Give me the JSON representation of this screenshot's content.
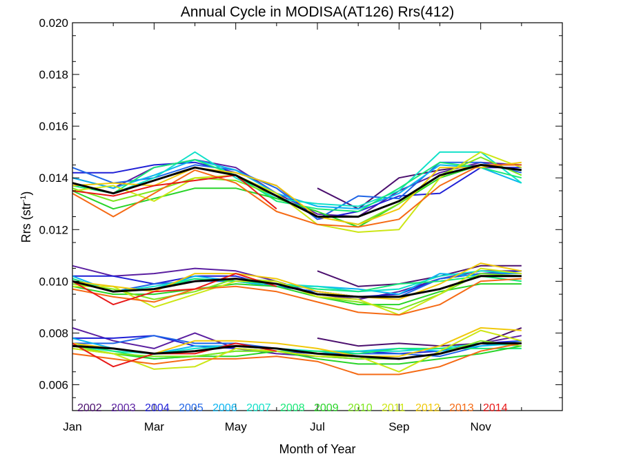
{
  "chart_data": {
    "type": "line",
    "title": "Annual Cycle in MODISA(AT126) Rrs(412)",
    "xlabel": "Month of Year",
    "ylabel": "Rrs (str",
    "ylabel_sup": "-1",
    "ylabel_close": ")",
    "xlim": [
      0,
      12
    ],
    "ylim": [
      0.005,
      0.02
    ],
    "x_ticks": [
      0,
      2,
      4,
      6,
      8,
      10
    ],
    "x_tick_labels": [
      "Jan",
      "Mar",
      "May",
      "Jul",
      "Sep",
      "Nov"
    ],
    "y_ticks": [
      0.006,
      0.008,
      0.01,
      0.012,
      0.014,
      0.016,
      0.018,
      0.02
    ],
    "y_tick_labels": [
      "0.006",
      "0.008",
      "0.010",
      "0.012",
      "0.014",
      "0.016",
      "0.018",
      "0.020"
    ],
    "x": [
      0,
      1,
      2,
      3,
      4,
      5,
      6,
      7,
      8,
      9,
      10,
      11
    ],
    "legend_position": "bottom-left inside",
    "series": [
      {
        "name": "2002",
        "color": "#4b0f6e",
        "groups": [
          [
            null,
            null,
            null,
            null,
            null,
            null,
            0.0136,
            0.0128,
            0.014,
            0.0143,
            0.0145,
            0.0145
          ],
          [
            null,
            null,
            null,
            null,
            null,
            null,
            0.0104,
            0.0098,
            0.0099,
            0.0102,
            0.0106,
            0.0106
          ],
          [
            null,
            null,
            null,
            null,
            null,
            null,
            0.0078,
            0.0075,
            0.0076,
            0.0075,
            0.0076,
            0.0082
          ]
        ]
      },
      {
        "name": "2003",
        "color": "#5a1ea0",
        "groups": [
          [
            0.014,
            0.0136,
            0.0144,
            0.0147,
            0.0144,
            0.0134,
            0.0126,
            0.0125,
            0.0135,
            0.0142,
            0.0146,
            0.0145
          ],
          [
            0.0106,
            0.0102,
            0.0103,
            0.0105,
            0.0104,
            0.01,
            0.0095,
            0.0093,
            0.0096,
            0.0101,
            0.0104,
            0.0104
          ],
          [
            0.0082,
            0.0077,
            0.0074,
            0.008,
            0.0074,
            0.0072,
            0.0071,
            0.007,
            0.007,
            0.0072,
            0.0076,
            0.0079
          ]
        ]
      },
      {
        "name": "2004",
        "color": "#1f1fd6",
        "groups": [
          [
            0.0142,
            0.0142,
            0.0145,
            0.0146,
            0.0142,
            0.0137,
            0.0124,
            0.0127,
            0.0133,
            0.0134,
            0.0144,
            0.0144
          ],
          [
            0.0102,
            0.0102,
            0.0099,
            0.0102,
            0.0102,
            0.0098,
            0.0096,
            0.0094,
            0.0095,
            0.0101,
            0.0103,
            0.0104
          ],
          [
            0.0078,
            0.0078,
            0.0079,
            0.0075,
            0.0074,
            0.0073,
            0.0072,
            0.0073,
            0.0072,
            0.0073,
            0.0076,
            0.0077
          ]
        ]
      },
      {
        "name": "2005",
        "color": "#1e64e6",
        "groups": [
          [
            0.0144,
            0.0138,
            0.014,
            0.0145,
            0.0143,
            0.0136,
            0.0124,
            0.0133,
            0.0132,
            0.0146,
            0.0146,
            0.0142
          ],
          [
            0.0101,
            0.0096,
            0.0099,
            0.01,
            0.01,
            0.0098,
            0.0096,
            0.0094,
            0.0094,
            0.0101,
            0.0103,
            0.0103
          ],
          [
            0.0076,
            0.0076,
            0.0079,
            0.0076,
            0.0076,
            0.0074,
            0.0072,
            0.0072,
            0.0072,
            0.0071,
            0.0075,
            0.0077
          ]
        ]
      },
      {
        "name": "2006",
        "color": "#0ab4f0",
        "groups": [
          [
            0.014,
            0.0136,
            0.0141,
            0.0147,
            0.0143,
            0.0134,
            0.0129,
            0.0128,
            0.0134,
            0.0145,
            0.0144,
            0.0138
          ],
          [
            0.0102,
            0.0096,
            0.0097,
            0.0102,
            0.01,
            0.0098,
            0.0098,
            0.0097,
            0.0095,
            0.0103,
            0.0102,
            0.0102
          ],
          [
            0.0078,
            0.0074,
            0.0072,
            0.0075,
            0.0075,
            0.0074,
            0.0072,
            0.0073,
            0.0074,
            0.0073,
            0.0075,
            0.0076
          ]
        ]
      },
      {
        "name": "2007",
        "color": "#10e0c8",
        "groups": [
          [
            0.0137,
            0.0134,
            0.014,
            0.015,
            0.014,
            0.0132,
            0.013,
            0.0129,
            0.0135,
            0.015,
            0.015,
            0.0138
          ],
          [
            0.01,
            0.0096,
            0.0098,
            0.0101,
            0.01,
            0.0099,
            0.0098,
            0.0096,
            0.0097,
            0.0102,
            0.0104,
            0.0103
          ],
          [
            0.0075,
            0.0073,
            0.0072,
            0.0074,
            0.0075,
            0.0074,
            0.0073,
            0.0073,
            0.0073,
            0.0074,
            0.0076,
            0.0075
          ]
        ]
      },
      {
        "name": "2008",
        "color": "#18e878",
        "groups": [
          [
            0.0137,
            0.0134,
            0.0144,
            0.0147,
            0.0141,
            0.0131,
            0.0128,
            0.0127,
            0.0136,
            0.0146,
            0.0144,
            0.014
          ],
          [
            0.0101,
            0.0096,
            0.0097,
            0.0101,
            0.01,
            0.0099,
            0.0097,
            0.0096,
            0.0099,
            0.01,
            0.0102,
            0.01
          ],
          [
            0.0076,
            0.0073,
            0.007,
            0.0071,
            0.0073,
            0.0073,
            0.0073,
            0.0072,
            0.0074,
            0.0074,
            0.0074,
            0.0074
          ]
        ]
      },
      {
        "name": "2009",
        "color": "#28d428",
        "groups": [
          [
            0.0135,
            0.0128,
            0.0132,
            0.0136,
            0.0136,
            0.0132,
            0.0127,
            0.0121,
            0.013,
            0.014,
            0.0145,
            0.0143
          ],
          [
            0.0098,
            0.0095,
            0.0095,
            0.0097,
            0.0099,
            0.0098,
            0.0094,
            0.0091,
            0.0091,
            0.0096,
            0.0099,
            0.0099
          ],
          [
            0.0074,
            0.0072,
            0.007,
            0.0071,
            0.0071,
            0.0073,
            0.007,
            0.0068,
            0.0068,
            0.007,
            0.0072,
            0.0075
          ]
        ]
      },
      {
        "name": "2010",
        "color": "#7ee61e",
        "groups": [
          [
            0.0136,
            0.0131,
            0.0135,
            0.014,
            0.0139,
            0.0133,
            0.0125,
            0.0122,
            0.013,
            0.0141,
            0.0148,
            0.0141
          ],
          [
            0.0099,
            0.0097,
            0.0093,
            0.0096,
            0.0101,
            0.01,
            0.0094,
            0.0092,
            0.0089,
            0.0095,
            0.0103,
            0.0102
          ],
          [
            0.0075,
            0.0072,
            0.0071,
            0.0071,
            0.0073,
            0.0073,
            0.0071,
            0.007,
            0.007,
            0.0072,
            0.0077,
            0.0075
          ]
        ]
      },
      {
        "name": "2011",
        "color": "#cce614",
        "groups": [
          [
            0.0135,
            0.0137,
            0.0131,
            0.014,
            0.0141,
            0.0134,
            0.0122,
            0.0119,
            0.012,
            0.014,
            0.015,
            0.0144
          ],
          [
            0.0098,
            0.0098,
            0.009,
            0.0095,
            0.01,
            0.01,
            0.0094,
            0.0093,
            0.0087,
            0.0095,
            0.0105,
            0.0103
          ],
          [
            0.0074,
            0.0072,
            0.0066,
            0.0067,
            0.0074,
            0.0073,
            0.0071,
            0.0071,
            0.0065,
            0.0073,
            0.0081,
            0.0077
          ]
        ]
      },
      {
        "name": "2012",
        "color": "#f0c80a",
        "groups": [
          [
            0.0137,
            0.0138,
            0.0137,
            0.0144,
            0.0142,
            0.0137,
            0.0125,
            0.0122,
            0.0128,
            0.0144,
            0.0144,
            0.0146
          ],
          [
            0.01,
            0.0098,
            0.0096,
            0.0103,
            0.0103,
            0.0101,
            0.0096,
            0.0094,
            0.0093,
            0.0099,
            0.0107,
            0.0104
          ],
          [
            0.0076,
            0.0074,
            0.0072,
            0.0077,
            0.0077,
            0.0076,
            0.0074,
            0.0071,
            0.0071,
            0.0075,
            0.0082,
            0.0081
          ]
        ]
      },
      {
        "name": "2013",
        "color": "#f56a14",
        "groups": [
          [
            0.0134,
            0.0125,
            0.0134,
            0.0143,
            0.0138,
            0.0127,
            0.0122,
            0.0121,
            0.0124,
            0.0137,
            0.0145,
            0.0145
          ],
          [
            0.0097,
            0.0094,
            0.0092,
            0.0097,
            0.0098,
            0.0096,
            0.0092,
            0.0088,
            0.0087,
            0.0091,
            0.01,
            0.0101
          ],
          [
            0.0072,
            0.007,
            0.0068,
            0.007,
            0.007,
            0.0071,
            0.0069,
            0.0064,
            0.0064,
            0.0067,
            0.0073,
            0.0076
          ]
        ]
      },
      {
        "name": "2014",
        "color": "#e81818",
        "groups": [
          [
            0.0135,
            0.0133,
            0.0137,
            0.0139,
            0.0141,
            0.0128,
            null,
            null,
            null,
            null,
            null,
            null
          ],
          [
            0.01,
            0.0091,
            0.0096,
            0.0097,
            0.0103,
            0.0098,
            null,
            null,
            null,
            null,
            null,
            null
          ],
          [
            0.0076,
            0.0067,
            0.0072,
            0.0072,
            0.0076,
            0.0073,
            null,
            null,
            null,
            null,
            null,
            null
          ]
        ]
      },
      {
        "name": "",
        "color": "#000000",
        "is_mean": true,
        "groups": [
          [
            0.0138,
            0.0134,
            0.0139,
            0.0144,
            0.0141,
            0.0133,
            0.0125,
            0.0125,
            0.0131,
            0.0141,
            0.0145,
            0.0143
          ],
          [
            0.01,
            0.0096,
            0.0097,
            0.01,
            0.0101,
            0.0099,
            0.0095,
            0.0094,
            0.0094,
            0.0097,
            0.0102,
            0.0102
          ],
          [
            0.0075,
            0.0074,
            0.0072,
            0.0073,
            0.0075,
            0.0074,
            0.0072,
            0.0071,
            0.007,
            0.0072,
            0.0076,
            0.0076
          ]
        ]
      }
    ]
  }
}
